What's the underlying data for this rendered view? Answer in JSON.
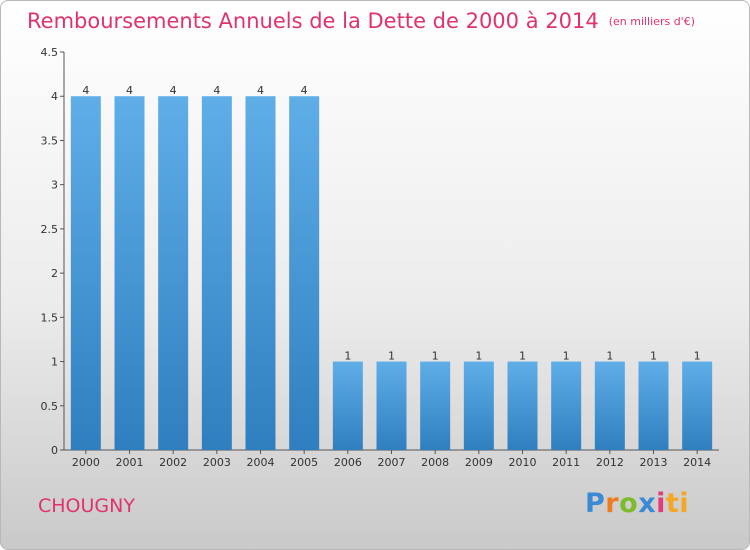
{
  "header": {
    "title": "Remboursements Annuels de la Dette de 2000 à 2014",
    "unit": "(en milliers d'€)"
  },
  "footer": {
    "commune": "CHOUGNY",
    "logo_letters": [
      "P",
      "r",
      "o",
      "x",
      "i",
      "ti"
    ]
  },
  "colors": {
    "bar_light": "#5faee8",
    "bar_dark": "#2f7fc0",
    "title": "#e0336b",
    "axis": "#555555"
  },
  "chart_data": {
    "type": "bar",
    "title": "Remboursements Annuels de la Dette de 2000 à 2014",
    "xlabel": "",
    "ylabel": "",
    "categories": [
      "2000",
      "2001",
      "2002",
      "2003",
      "2004",
      "2005",
      "2006",
      "2007",
      "2008",
      "2009",
      "2010",
      "2011",
      "2012",
      "2013",
      "2014"
    ],
    "values": [
      4,
      4,
      4,
      4,
      4,
      4,
      1,
      1,
      1,
      1,
      1,
      1,
      1,
      1,
      1
    ],
    "data_labels": [
      "4",
      "4",
      "4",
      "4",
      "4",
      "4",
      "1",
      "1",
      "1",
      "1",
      "1",
      "1",
      "1",
      "1",
      "1"
    ],
    "ylim": [
      0,
      4.5
    ],
    "yticks": [
      0,
      0.5,
      1,
      1.5,
      2,
      2.5,
      3,
      3.5,
      4,
      4.5
    ],
    "ytick_labels": [
      "0",
      "0.5",
      "1",
      "1.5",
      "2",
      "2.5",
      "3",
      "3.5",
      "4",
      "4.5"
    ],
    "grid": false,
    "legend": "none"
  }
}
